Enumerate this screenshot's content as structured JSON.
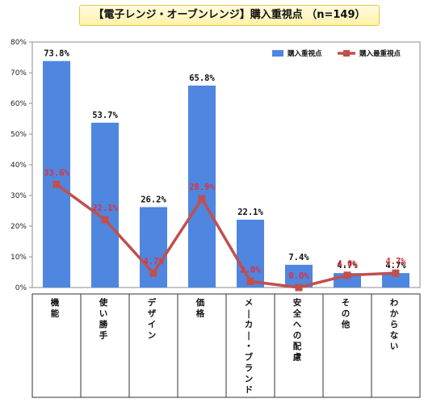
{
  "title": "【電子レンジ・オーブンレンジ】購入重視点 （n=149）",
  "chart_data": {
    "type": "bar",
    "categories": [
      "機能",
      "使い勝手",
      "デザイン",
      "価格",
      "メーカー・ブランド",
      "安全への配慮",
      "その他",
      "わからない"
    ],
    "y_ticks": [
      "0%",
      "10%",
      "20%",
      "30%",
      "40%",
      "50%",
      "60%",
      "70%",
      "80%"
    ],
    "ylim": [
      0,
      80
    ],
    "legend_position": "top-right",
    "series": [
      {
        "name": "購入重視点",
        "type": "bar",
        "color": "#4f86e0",
        "values": [
          73.8,
          53.7,
          26.2,
          65.8,
          22.1,
          7.4,
          4.7,
          4.7
        ],
        "labels": [
          "73.8%",
          "53.7%",
          "26.2%",
          "65.8%",
          "22.1%",
          "7.4%",
          "4.7%",
          "4.7%"
        ]
      },
      {
        "name": "購入最重視点",
        "type": "line",
        "color": "#c0504d",
        "label_color": "#e0303a",
        "values": [
          33.6,
          22.1,
          4.7,
          28.9,
          2.0,
          0.0,
          4.0,
          4.7
        ],
        "labels": [
          "33.6%",
          "22.1%",
          "4.7%",
          "28.9%",
          "2.0%",
          "0.0%",
          "4.0%",
          "4.7%"
        ]
      }
    ]
  }
}
